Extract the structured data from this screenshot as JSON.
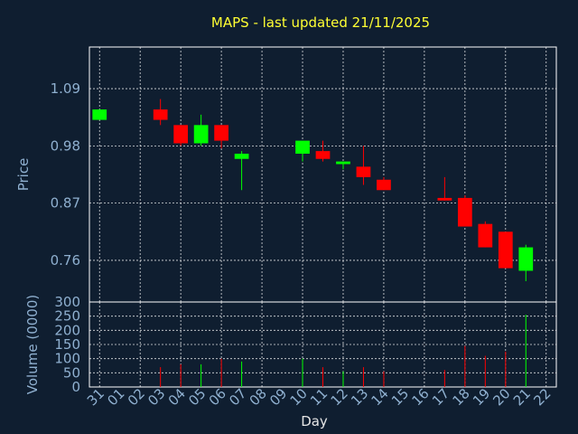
{
  "chart_data": [
    {
      "type": "candlestick",
      "title": "MAPS - last updated 21/11/2025",
      "ylabel": "Price",
      "ylim": [
        0.68,
        1.17
      ],
      "yticks": [
        0.76,
        0.87,
        0.98,
        1.09
      ],
      "ytick_labels": [
        "0.76",
        "0.87",
        "0.98",
        "1.09"
      ],
      "grid": true,
      "colors": {
        "up": "#00ff00",
        "down": "#ff0000",
        "grid": "#ffffff",
        "text": "#8fb0d0",
        "title": "#ffff33"
      },
      "x": [
        "31",
        "01",
        "02",
        "03",
        "04",
        "05",
        "06",
        "07",
        "08",
        "09",
        "10",
        "11",
        "12",
        "13",
        "14",
        "15",
        "16",
        "17",
        "18",
        "19",
        "20",
        "21",
        "22"
      ],
      "candles": [
        {
          "x": "31",
          "open": 1.03,
          "high": 1.05,
          "low": 1.03,
          "close": 1.05
        },
        {
          "x": "03",
          "open": 1.05,
          "high": 1.07,
          "low": 1.02,
          "close": 1.03
        },
        {
          "x": "04",
          "open": 1.02,
          "high": 1.02,
          "low": 0.98,
          "close": 0.985
        },
        {
          "x": "05",
          "open": 0.985,
          "high": 1.04,
          "low": 0.98,
          "close": 1.02
        },
        {
          "x": "06",
          "open": 1.02,
          "high": 1.02,
          "low": 0.975,
          "close": 0.99
        },
        {
          "x": "07",
          "open": 0.955,
          "high": 0.97,
          "low": 0.895,
          "close": 0.965
        },
        {
          "x": "10",
          "open": 0.965,
          "high": 0.99,
          "low": 0.95,
          "close": 0.99
        },
        {
          "x": "11",
          "open": 0.97,
          "high": 0.99,
          "low": 0.95,
          "close": 0.955
        },
        {
          "x": "12",
          "open": 0.945,
          "high": 0.95,
          "low": 0.935,
          "close": 0.95
        },
        {
          "x": "13",
          "open": 0.94,
          "high": 0.98,
          "low": 0.905,
          "close": 0.92
        },
        {
          "x": "14",
          "open": 0.915,
          "high": 0.92,
          "low": 0.895,
          "close": 0.895
        },
        {
          "x": "17",
          "open": 0.88,
          "high": 0.92,
          "low": 0.875,
          "close": 0.875
        },
        {
          "x": "18",
          "open": 0.88,
          "high": 0.885,
          "low": 0.825,
          "close": 0.825
        },
        {
          "x": "19",
          "open": 0.83,
          "high": 0.835,
          "low": 0.785,
          "close": 0.785
        },
        {
          "x": "20",
          "open": 0.815,
          "high": 0.815,
          "low": 0.745,
          "close": 0.745
        },
        {
          "x": "21",
          "open": 0.74,
          "high": 0.79,
          "low": 0.72,
          "close": 0.785
        }
      ]
    },
    {
      "type": "bar",
      "xlabel": "Day",
      "ylabel": "Volume (0000)",
      "ylim": [
        0,
        300
      ],
      "yticks": [
        0,
        50,
        100,
        150,
        200,
        250,
        300
      ],
      "ytick_labels": [
        "0",
        "50",
        "100",
        "150",
        "200",
        "250",
        "300"
      ],
      "categories": [
        "31",
        "01",
        "02",
        "03",
        "04",
        "05",
        "06",
        "07",
        "08",
        "09",
        "10",
        "11",
        "12",
        "13",
        "14",
        "15",
        "16",
        "17",
        "18",
        "19",
        "20",
        "21",
        "22"
      ],
      "values": [
        0,
        0,
        0,
        70,
        80,
        80,
        100,
        90,
        0,
        0,
        100,
        70,
        55,
        70,
        55,
        0,
        0,
        60,
        145,
        110,
        125,
        255,
        0
      ],
      "bar_colors": [
        "",
        "",
        "",
        "down",
        "down",
        "up",
        "down",
        "up",
        "",
        "",
        "up",
        "down",
        "up",
        "down",
        "down",
        "",
        "",
        "down",
        "down",
        "down",
        "down",
        "up",
        ""
      ]
    }
  ]
}
